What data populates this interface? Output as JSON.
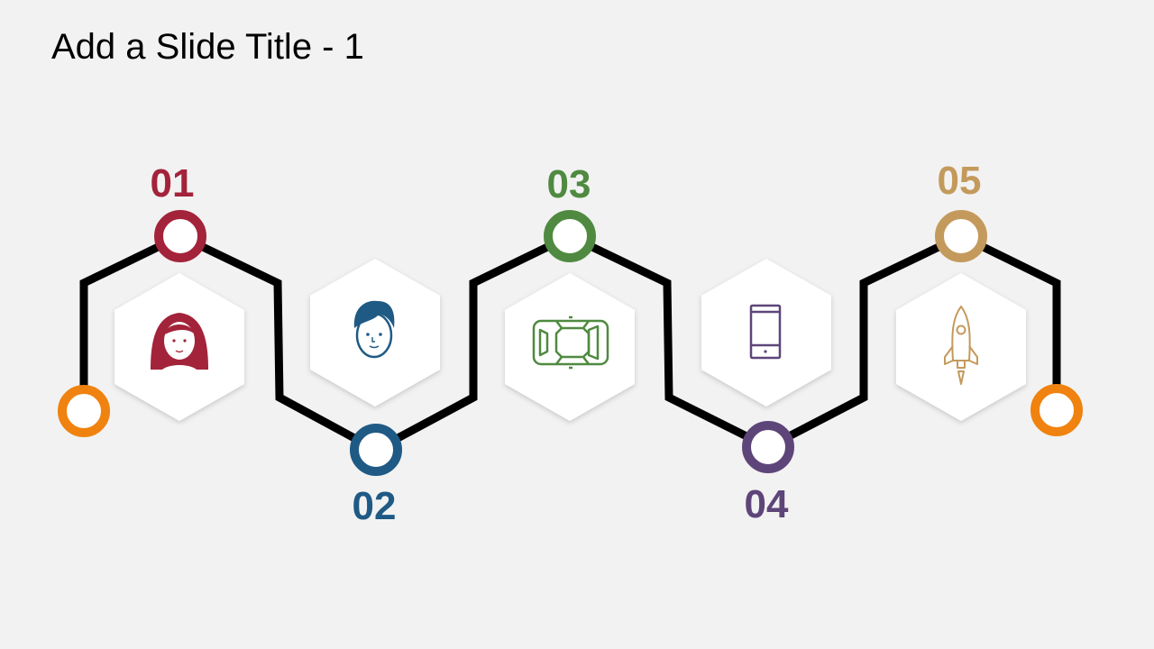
{
  "slide": {
    "title": "Add a Slide Title - 1"
  },
  "colors": {
    "background": "#f2f2f2",
    "path": "#000000",
    "hexagon": "#ffffff",
    "end_nodes": "#f0820f"
  },
  "steps": [
    {
      "number": "01",
      "color": "#a3233a",
      "icon": "woman-icon"
    },
    {
      "number": "02",
      "color": "#1f5a85",
      "icon": "man-icon"
    },
    {
      "number": "03",
      "color": "#4f8a40",
      "icon": "car-top-view-icon"
    },
    {
      "number": "04",
      "color": "#5e4579",
      "icon": "smartphone-icon"
    },
    {
      "number": "05",
      "color": "#c49a5c",
      "icon": "rocket-icon"
    }
  ]
}
